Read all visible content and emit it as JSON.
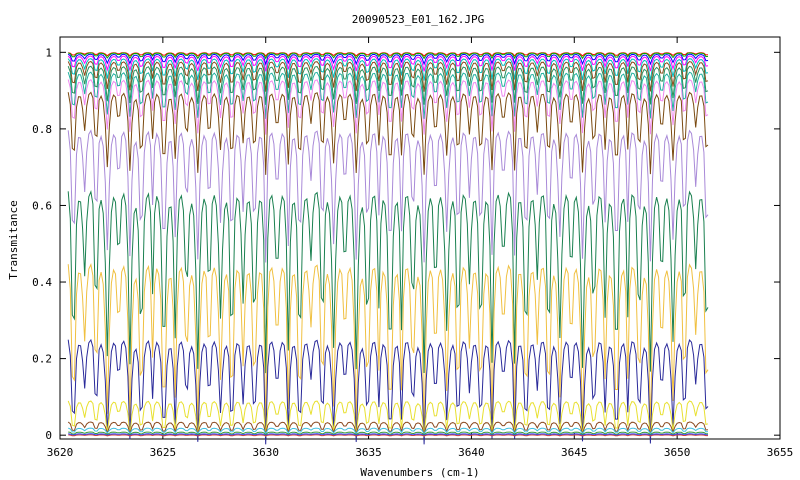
{
  "chart_data": {
    "type": "line",
    "title": "20090523_E01_162.JPG",
    "xlabel": "Wavenumbers (cm-1)",
    "ylabel": "Transmitance",
    "xlim": [
      3620,
      3655
    ],
    "ylim": [
      -0.01,
      1.04
    ],
    "x_ticks": [
      3620,
      3625,
      3630,
      3635,
      3640,
      3645,
      3650,
      3655
    ],
    "y_ticks": [
      0,
      0.2,
      0.4,
      0.6,
      0.8,
      1
    ],
    "y_tick_labels": [
      "0",
      "0.2",
      "0.4",
      "0.6",
      "0.8",
      "1"
    ],
    "grid": false,
    "legend": "none",
    "x_start": 3620.4,
    "x_end": 3651.5,
    "x_step": 0.1,
    "series": [
      {
        "baseline": 1.0,
        "depth": 0.006,
        "color": "#ff0000"
      },
      {
        "baseline": 1.0,
        "depth": 0.01,
        "color": "#00aa00"
      },
      {
        "baseline": 0.998,
        "depth": 0.018,
        "color": "#0000ff"
      },
      {
        "baseline": 0.995,
        "depth": 0.028,
        "color": "#ff00ff"
      },
      {
        "baseline": 0.99,
        "depth": 0.04,
        "color": "#00bbbb"
      },
      {
        "baseline": 0.985,
        "depth": 0.055,
        "color": "#8a4a1a"
      },
      {
        "baseline": 0.975,
        "depth": 0.07,
        "color": "#2a8f5a"
      },
      {
        "baseline": 0.962,
        "depth": 0.085,
        "color": "#20b0a0"
      },
      {
        "baseline": 0.945,
        "depth": 0.1,
        "color": "#ee88ee"
      },
      {
        "baseline": 0.92,
        "depth": 0.15,
        "color": "#7a4a10"
      },
      {
        "baseline": 0.835,
        "depth": 0.24,
        "color": "#a98ad8"
      },
      {
        "baseline": 0.69,
        "depth": 0.33,
        "color": "#1a8050"
      },
      {
        "baseline": 0.495,
        "depth": 0.3,
        "color": "#f0c040"
      },
      {
        "baseline": 0.28,
        "depth": 0.19,
        "color": "#2a2a9a"
      },
      {
        "baseline": 0.1,
        "depth": 0.065,
        "color": "#e8e030"
      },
      {
        "baseline": 0.038,
        "depth": 0.022,
        "color": "#8a4a20"
      },
      {
        "baseline": 0.02,
        "depth": 0.01,
        "color": "#40c0e0"
      },
      {
        "baseline": 0.009,
        "depth": 0.005,
        "color": "#3a9a3a"
      },
      {
        "baseline": 0.004,
        "depth": 0.003,
        "color": "#2040ff"
      },
      {
        "baseline": 0.001,
        "depth": 0.002,
        "color": "#d04040"
      }
    ]
  }
}
